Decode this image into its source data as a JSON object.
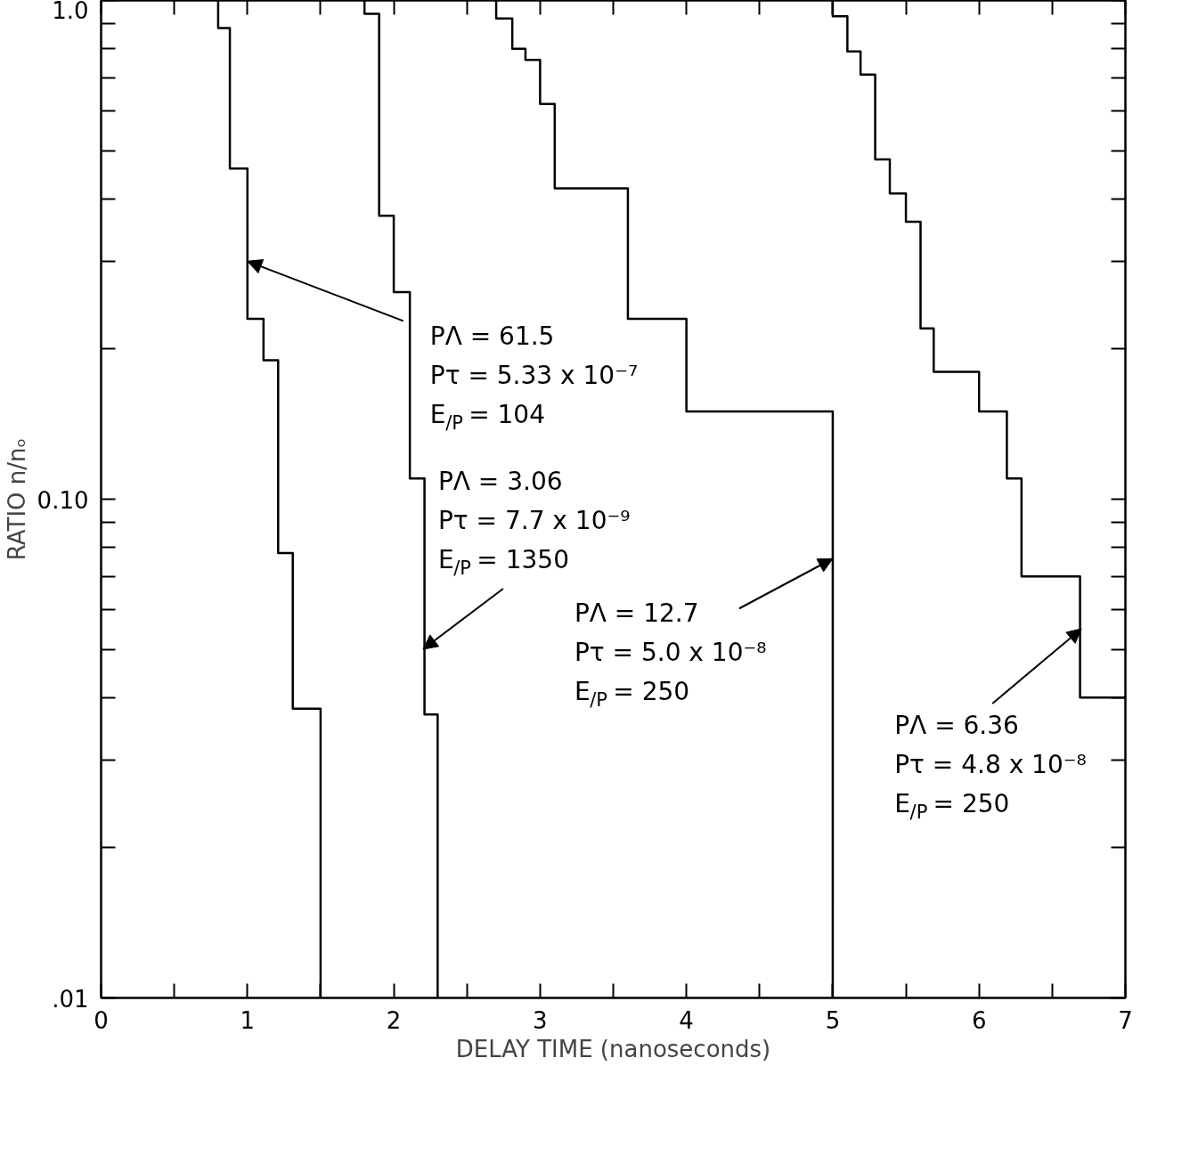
{
  "chart_data": {
    "type": "step",
    "xlabel": "DELAY TIME (nanoseconds)",
    "ylabel": "RATIO n/nₒ",
    "log": "y",
    "xlim": [
      0,
      7
    ],
    "ylim": [
      0.01,
      1.0
    ],
    "xticks": [
      0,
      {
        "value": 0.5,
        "label": null
      },
      1,
      {
        "value": 1.5,
        "label": null
      },
      2,
      {
        "value": 2.5,
        "label": null
      },
      3,
      {
        "value": 3.5,
        "label": null
      },
      4,
      {
        "value": 4.5,
        "label": null
      },
      5,
      {
        "value": 5.5,
        "label": null
      },
      6,
      {
        "value": 6.5,
        "label": null
      },
      7
    ],
    "yticks": [
      {
        "value": 0.01,
        "label": ".01"
      },
      {
        "value": 0.02,
        "label": null
      },
      {
        "value": 0.03,
        "label": null
      },
      {
        "value": 0.04,
        "label": null
      },
      {
        "value": 0.05,
        "label": null
      },
      {
        "value": 0.06,
        "label": null
      },
      {
        "value": 0.07,
        "label": null
      },
      {
        "value": 0.08,
        "label": null
      },
      {
        "value": 0.09,
        "label": null
      },
      {
        "value": 0.1,
        "label": "0.10"
      },
      {
        "value": 0.2,
        "label": null
      },
      {
        "value": 0.3,
        "label": null
      },
      {
        "value": 0.4,
        "label": null
      },
      {
        "value": 0.5,
        "label": null
      },
      {
        "value": 0.6,
        "label": null
      },
      {
        "value": 0.7,
        "label": null
      },
      {
        "value": 0.8,
        "label": null
      },
      {
        "value": 0.9,
        "label": null
      },
      {
        "value": 1.0,
        "label": "1.0"
      }
    ],
    "series": [
      {
        "color": "#000000",
        "x": [
          0.8,
          0.8,
          0.88,
          1.0,
          1.11,
          1.21,
          1.31,
          1.5
        ],
        "values": [
          1.0,
          0.88,
          0.46,
          0.23,
          0.19,
          0.078,
          0.038,
          0.01
        ]
      },
      {
        "color": "#000000",
        "x": [
          1.8,
          1.8,
          1.9,
          2.0,
          2.11,
          2.21,
          2.3
        ],
        "values": [
          1.0,
          0.94,
          0.37,
          0.26,
          0.11,
          0.037,
          0.01
        ]
      },
      {
        "color": "#000000",
        "x": [
          2.7,
          2.7,
          2.81,
          2.9,
          3.0,
          3.1,
          3.6,
          4.0,
          5.0
        ],
        "values": [
          1.0,
          0.92,
          0.8,
          0.76,
          0.62,
          0.42,
          0.23,
          0.15,
          0.01
        ]
      },
      {
        "color": "#000000",
        "x": [
          5.0,
          5.0,
          5.1,
          5.19,
          5.29,
          5.39,
          5.5,
          5.6,
          5.69,
          6.0,
          6.19,
          6.29,
          6.69,
          7.0
        ],
        "values": [
          1.0,
          0.93,
          0.79,
          0.71,
          0.48,
          0.41,
          0.36,
          0.22,
          0.18,
          0.15,
          0.11,
          0.07,
          0.04,
          0.04
        ]
      }
    ],
    "annotations": [
      {
        "text": "PΛ = 61.5\nPτ = 5.33 x 10⁻⁷\nE$_{/P}$= 104",
        "x": 1.0,
        "y": 0.3
      },
      {
        "text": "PΛ = 3.06\nPτ = 7.7 x 10⁻⁹\nE$_{/P}$= 1350",
        "x": 2.2,
        "y": 0.05
      },
      {
        "text": "PΛ = 12.7\nPτ = 5.0 x 10⁻⁸\nE$_{/P}$= 250",
        "x": 5.0,
        "y": 0.076
      },
      {
        "text": "PΛ = 6.36\nPτ = 4.8 x 10⁻⁸\nE$_{/P}$= 250",
        "x": 6.7,
        "y": 0.055
      }
    ]
  }
}
